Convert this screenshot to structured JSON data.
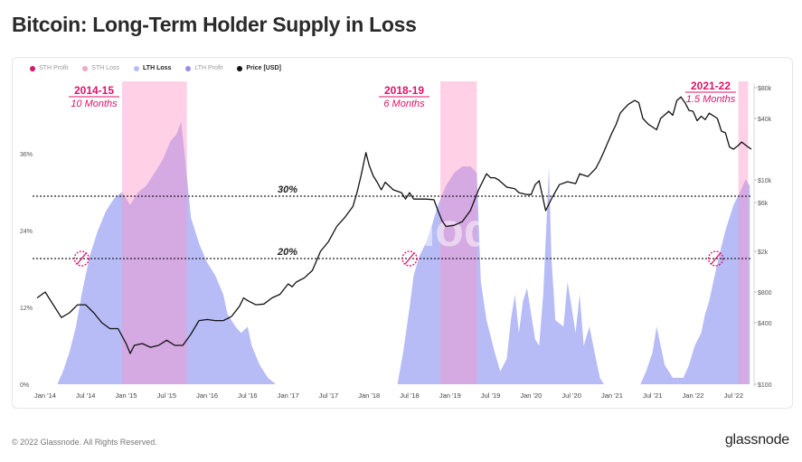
{
  "title": "Bitcoin: Long-Term Holder Supply in Loss",
  "legend": [
    {
      "label": "STH Profit",
      "color": "#e0116a",
      "active": false
    },
    {
      "label": "STH Loss",
      "color": "#f4a6c6",
      "active": false
    },
    {
      "label": "LTH Loss",
      "color": "#b9bdf6",
      "active": true
    },
    {
      "label": "LTH Profit",
      "color": "#9a8de8",
      "active": false
    },
    {
      "label": "Price [USD]",
      "color": "#111111",
      "active": true
    }
  ],
  "footer": {
    "copyright": "© 2022 Glassnode. All Rights Reserved.",
    "brand": "glassnode"
  },
  "watermark": "glassnode",
  "colors": {
    "lth_loss_fill": "#b3b8f5",
    "highlight_band": "#ff8fc4",
    "annotation": "#e0116a",
    "price_line": "#111111"
  },
  "annotations": {
    "bands": [
      {
        "period": "2014-15",
        "duration": "10 Months",
        "start": 2014.95,
        "end": 2015.75
      },
      {
        "period": "2018-19",
        "duration": "6 Months",
        "start": 2018.88,
        "end": 2019.33
      },
      {
        "period": "2021-22",
        "duration": "1.5 Months",
        "start": 2022.56,
        "end": 2022.68
      }
    ],
    "thresholds": [
      {
        "label": "30%",
        "value": 30
      },
      {
        "label": "20%",
        "value": 20
      }
    ],
    "markers_x": [
      2014.45,
      2018.5,
      2022.28
    ]
  },
  "chart_data": {
    "type": "area",
    "x_ticks": [
      "Jan '14",
      "Jul '14",
      "Jan '15",
      "Jul '15",
      "Jan '16",
      "Jul '16",
      "Jan '17",
      "Jul '17",
      "Jan '18",
      "Jul '18",
      "Jan '19",
      "Jul '19",
      "Jan '20",
      "Jul '20",
      "Jan '21",
      "Jul '21",
      "Jan '22",
      "Jul '22"
    ],
    "x_range": [
      2013.9,
      2022.72
    ],
    "y_left_ticks": [
      "0%",
      "12%",
      "24%",
      "36%"
    ],
    "y_left_range": [
      0,
      36
    ],
    "y_right_ticks": [
      "$100",
      "$400",
      "$800",
      "$2k",
      "$6k",
      "$10k",
      "$40k",
      "$80k"
    ],
    "y_right_range": [
      100,
      80000
    ],
    "y_right_scale": "log",
    "grid": false,
    "legend_position": "top-left",
    "series": [
      {
        "name": "LTH Loss",
        "axis": "left",
        "points": [
          [
            2014.15,
            0
          ],
          [
            2014.22,
            2
          ],
          [
            2014.3,
            5
          ],
          [
            2014.38,
            9
          ],
          [
            2014.45,
            14
          ],
          [
            2014.55,
            20
          ],
          [
            2014.65,
            24
          ],
          [
            2014.75,
            27
          ],
          [
            2014.85,
            29
          ],
          [
            2014.95,
            30
          ],
          [
            2015.05,
            28
          ],
          [
            2015.15,
            30
          ],
          [
            2015.25,
            31
          ],
          [
            2015.35,
            33
          ],
          [
            2015.45,
            35
          ],
          [
            2015.55,
            38
          ],
          [
            2015.62,
            39
          ],
          [
            2015.68,
            41
          ],
          [
            2015.73,
            35
          ],
          [
            2015.8,
            26
          ],
          [
            2015.9,
            22
          ],
          [
            2016.0,
            19
          ],
          [
            2016.1,
            17
          ],
          [
            2016.2,
            14
          ],
          [
            2016.25,
            11
          ],
          [
            2016.35,
            9
          ],
          [
            2016.42,
            8
          ],
          [
            2016.5,
            9
          ],
          [
            2016.55,
            6
          ],
          [
            2016.65,
            3
          ],
          [
            2016.75,
            1
          ],
          [
            2016.85,
            0
          ],
          [
            2018.35,
            0
          ],
          [
            2018.42,
            5
          ],
          [
            2018.5,
            12
          ],
          [
            2018.55,
            17
          ],
          [
            2018.62,
            20
          ],
          [
            2018.7,
            22
          ],
          [
            2018.78,
            25
          ],
          [
            2018.85,
            28
          ],
          [
            2018.95,
            31
          ],
          [
            2019.05,
            33
          ],
          [
            2019.15,
            34
          ],
          [
            2019.25,
            34
          ],
          [
            2019.33,
            33
          ],
          [
            2019.38,
            16
          ],
          [
            2019.45,
            10
          ],
          [
            2019.55,
            5
          ],
          [
            2019.62,
            2
          ],
          [
            2019.7,
            4
          ],
          [
            2019.75,
            10
          ],
          [
            2019.8,
            14
          ],
          [
            2019.85,
            8
          ],
          [
            2019.9,
            13
          ],
          [
            2019.95,
            15
          ],
          [
            2020.0,
            11
          ],
          [
            2020.05,
            7
          ],
          [
            2020.1,
            6
          ],
          [
            2020.15,
            14
          ],
          [
            2020.2,
            28
          ],
          [
            2020.22,
            34
          ],
          [
            2020.25,
            20
          ],
          [
            2020.3,
            10
          ],
          [
            2020.4,
            9
          ],
          [
            2020.45,
            16
          ],
          [
            2020.5,
            12
          ],
          [
            2020.55,
            8
          ],
          [
            2020.6,
            14
          ],
          [
            2020.65,
            6
          ],
          [
            2020.72,
            9
          ],
          [
            2020.8,
            4
          ],
          [
            2020.85,
            1
          ],
          [
            2020.9,
            0
          ],
          [
            2021.35,
            0
          ],
          [
            2021.42,
            2
          ],
          [
            2021.5,
            5
          ],
          [
            2021.55,
            9
          ],
          [
            2021.6,
            6
          ],
          [
            2021.65,
            3
          ],
          [
            2021.75,
            1
          ],
          [
            2021.88,
            1
          ],
          [
            2021.95,
            3
          ],
          [
            2022.02,
            6
          ],
          [
            2022.1,
            8
          ],
          [
            2022.15,
            11
          ],
          [
            2022.2,
            13
          ],
          [
            2022.25,
            16
          ],
          [
            2022.32,
            20
          ],
          [
            2022.4,
            24
          ],
          [
            2022.45,
            26
          ],
          [
            2022.5,
            28
          ],
          [
            2022.58,
            30
          ],
          [
            2022.65,
            32
          ],
          [
            2022.7,
            31
          ]
        ]
      },
      {
        "name": "Price [USD]",
        "axis": "right",
        "points": [
          [
            2013.9,
            700
          ],
          [
            2014.0,
            800
          ],
          [
            2014.1,
            600
          ],
          [
            2014.2,
            450
          ],
          [
            2014.3,
            500
          ],
          [
            2014.4,
            600
          ],
          [
            2014.5,
            600
          ],
          [
            2014.6,
            500
          ],
          [
            2014.7,
            400
          ],
          [
            2014.8,
            350
          ],
          [
            2014.9,
            350
          ],
          [
            2015.0,
            250
          ],
          [
            2015.05,
            200
          ],
          [
            2015.1,
            240
          ],
          [
            2015.2,
            250
          ],
          [
            2015.3,
            230
          ],
          [
            2015.4,
            240
          ],
          [
            2015.5,
            270
          ],
          [
            2015.6,
            240
          ],
          [
            2015.7,
            240
          ],
          [
            2015.8,
            310
          ],
          [
            2015.9,
            420
          ],
          [
            2016.0,
            430
          ],
          [
            2016.1,
            420
          ],
          [
            2016.2,
            420
          ],
          [
            2016.3,
            460
          ],
          [
            2016.4,
            580
          ],
          [
            2016.45,
            700
          ],
          [
            2016.5,
            660
          ],
          [
            2016.6,
            600
          ],
          [
            2016.7,
            610
          ],
          [
            2016.8,
            700
          ],
          [
            2016.9,
            760
          ],
          [
            2017.0,
            960
          ],
          [
            2017.05,
            900
          ],
          [
            2017.1,
            1000
          ],
          [
            2017.2,
            1100
          ],
          [
            2017.3,
            1300
          ],
          [
            2017.4,
            2000
          ],
          [
            2017.5,
            2500
          ],
          [
            2017.6,
            3500
          ],
          [
            2017.7,
            4300
          ],
          [
            2017.8,
            5500
          ],
          [
            2017.85,
            7500
          ],
          [
            2017.9,
            11000
          ],
          [
            2017.96,
            18500
          ],
          [
            2018.0,
            14000
          ],
          [
            2018.05,
            11000
          ],
          [
            2018.1,
            9500
          ],
          [
            2018.15,
            8000
          ],
          [
            2018.2,
            9500
          ],
          [
            2018.3,
            8000
          ],
          [
            2018.4,
            7500
          ],
          [
            2018.45,
            6500
          ],
          [
            2018.5,
            7500
          ],
          [
            2018.55,
            6500
          ],
          [
            2018.6,
            6500
          ],
          [
            2018.7,
            6500
          ],
          [
            2018.8,
            6400
          ],
          [
            2018.85,
            5000
          ],
          [
            2018.9,
            4000
          ],
          [
            2018.95,
            3500
          ],
          [
            2019.05,
            3600
          ],
          [
            2019.15,
            3900
          ],
          [
            2019.25,
            5000
          ],
          [
            2019.35,
            8000
          ],
          [
            2019.45,
            11500
          ],
          [
            2019.5,
            10500
          ],
          [
            2019.55,
            10500
          ],
          [
            2019.6,
            10000
          ],
          [
            2019.7,
            8500
          ],
          [
            2019.8,
            8200
          ],
          [
            2019.85,
            7500
          ],
          [
            2019.95,
            7200
          ],
          [
            2020.0,
            7200
          ],
          [
            2020.05,
            9000
          ],
          [
            2020.1,
            9800
          ],
          [
            2020.18,
            5000
          ],
          [
            2020.25,
            6500
          ],
          [
            2020.35,
            9000
          ],
          [
            2020.45,
            9600
          ],
          [
            2020.55,
            9200
          ],
          [
            2020.6,
            11500
          ],
          [
            2020.7,
            10800
          ],
          [
            2020.8,
            13000
          ],
          [
            2020.85,
            15500
          ],
          [
            2020.9,
            19000
          ],
          [
            2021.0,
            29000
          ],
          [
            2021.05,
            35000
          ],
          [
            2021.1,
            45000
          ],
          [
            2021.15,
            50000
          ],
          [
            2021.2,
            55000
          ],
          [
            2021.28,
            60000
          ],
          [
            2021.33,
            57000
          ],
          [
            2021.38,
            40000
          ],
          [
            2021.45,
            35000
          ],
          [
            2021.5,
            33000
          ],
          [
            2021.55,
            31000
          ],
          [
            2021.6,
            40000
          ],
          [
            2021.7,
            47000
          ],
          [
            2021.75,
            43000
          ],
          [
            2021.8,
            60000
          ],
          [
            2021.85,
            65000
          ],
          [
            2021.9,
            57000
          ],
          [
            2021.95,
            48000
          ],
          [
            2022.0,
            47000
          ],
          [
            2022.05,
            38000
          ],
          [
            2022.1,
            42000
          ],
          [
            2022.15,
            39000
          ],
          [
            2022.2,
            45000
          ],
          [
            2022.3,
            40000
          ],
          [
            2022.35,
            30000
          ],
          [
            2022.4,
            29000
          ],
          [
            2022.45,
            21000
          ],
          [
            2022.5,
            20000
          ],
          [
            2022.55,
            21500
          ],
          [
            2022.6,
            23500
          ],
          [
            2022.68,
            21000
          ],
          [
            2022.72,
            20000
          ]
        ]
      }
    ]
  }
}
